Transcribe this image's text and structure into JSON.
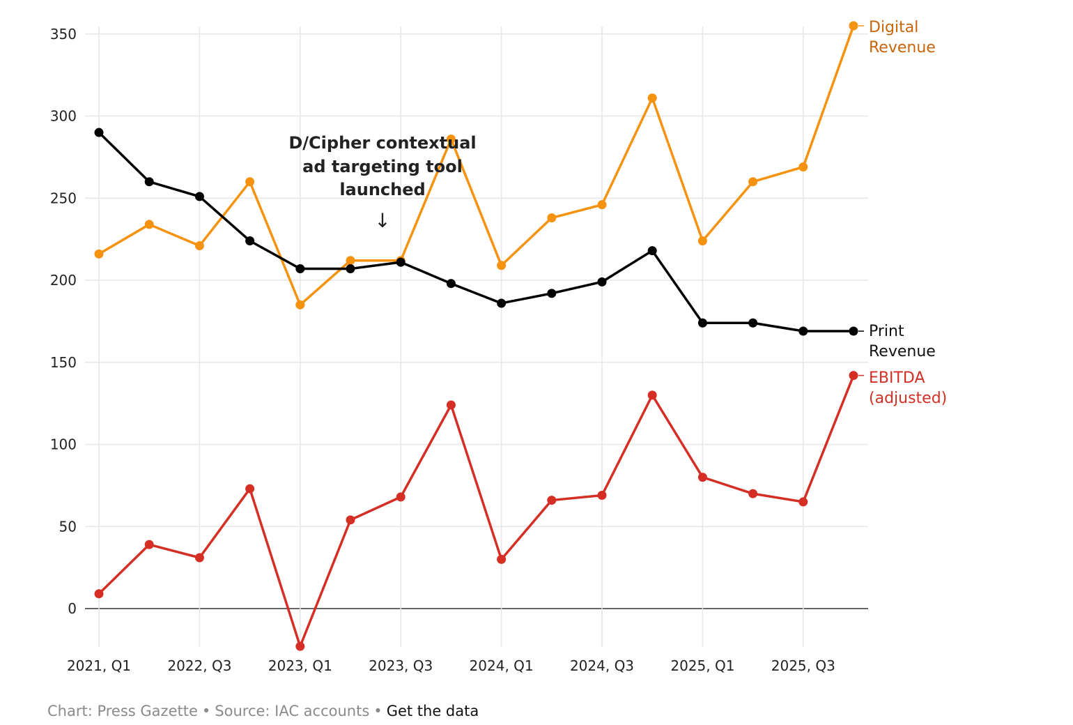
{
  "chart_data": {
    "type": "line",
    "x": [
      "2021, Q1",
      "2021, Q2",
      "2022, Q3",
      "2022, Q4",
      "2023, Q1",
      "2023, Q2",
      "2023, Q3",
      "2023, Q4",
      "2024, Q1",
      "2024, Q2",
      "2024, Q3",
      "2024, Q4",
      "2025, Q1",
      "2025, Q2",
      "2025, Q3",
      "2025, Q4"
    ],
    "xticks": [
      "2021, Q1",
      "2022, Q3",
      "2023, Q1",
      "2023, Q3",
      "2024, Q1",
      "2024, Q3",
      "2025, Q1",
      "2025, Q3"
    ],
    "yticks": [
      0,
      50,
      100,
      150,
      200,
      250,
      300,
      350
    ],
    "ylim": [
      -23,
      355
    ],
    "grid": true,
    "series": [
      {
        "key": "digital",
        "name": "Digital Revenue",
        "label_lines": [
          "Digital",
          "Revenue"
        ],
        "values": [
          216,
          234,
          221,
          260,
          185,
          212,
          212,
          286,
          209,
          238,
          246,
          311,
          224,
          260,
          269,
          355
        ]
      },
      {
        "key": "print",
        "name": "Print Revenue",
        "label_lines": [
          "Print",
          "Revenue"
        ],
        "values": [
          290,
          260,
          251,
          224,
          207,
          207,
          211,
          198,
          186,
          192,
          199,
          218,
          174,
          174,
          169,
          169
        ]
      },
      {
        "key": "ebitda",
        "name": "EBITDA (adjusted)",
        "label_lines": [
          "EBITDA",
          "(adjusted)"
        ],
        "values": [
          9,
          39,
          31,
          73,
          -23,
          54,
          68,
          124,
          30,
          66,
          69,
          130,
          80,
          70,
          65,
          142
        ]
      }
    ],
    "annotation": {
      "lines": [
        "D/Cipher contextual",
        "ad targeting tool",
        "launched"
      ],
      "arrow": "↓"
    }
  },
  "colors": {
    "digital": "#f5920f",
    "digital_label": "#c8650a",
    "print": "#000000",
    "ebitda": "#d52e25",
    "grid": "#e6e6e6",
    "zero_line": "#333333"
  },
  "footer": {
    "chart_credit": "Chart: Press Gazette",
    "separator": "•",
    "source": "Source: IAC accounts",
    "link": "Get the data"
  }
}
